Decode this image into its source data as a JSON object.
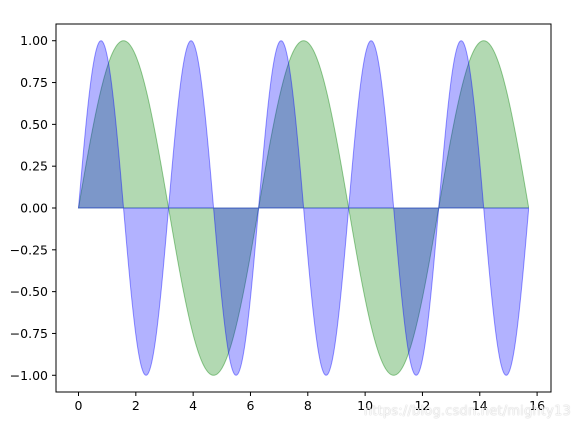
{
  "chart_data": {
    "type": "area",
    "x_range": [
      0,
      15.7
    ],
    "xlim": [
      -0.785,
      16.485
    ],
    "ylim": [
      -1.1,
      1.1
    ],
    "x_ticks": [
      0,
      2,
      4,
      6,
      8,
      10,
      12,
      14,
      16
    ],
    "y_ticks": [
      -1.0,
      -0.75,
      -0.5,
      -0.25,
      0.0,
      0.25,
      0.5,
      0.75,
      1.0
    ],
    "x_tick_labels": [
      "0",
      "2",
      "4",
      "6",
      "8",
      "10",
      "12",
      "14",
      "16"
    ],
    "y_tick_labels": [
      "−1.00",
      "−0.75",
      "−0.50",
      "−0.25",
      "0.00",
      "0.25",
      "0.50",
      "0.75",
      "1.00"
    ],
    "series": [
      {
        "function": "sin(x)",
        "frequency": 1,
        "fill_to": 0,
        "color": "#008000",
        "fill_opacity": 0.3
      },
      {
        "function": "sin(2x)",
        "frequency": 2,
        "fill_to": 0,
        "color": "#0000ff",
        "fill_opacity": 0.3
      }
    ],
    "grid": false,
    "legend": "none",
    "title": "",
    "xlabel": "",
    "ylabel": ""
  },
  "watermark": "https://blog.csdn.net/mighty13"
}
